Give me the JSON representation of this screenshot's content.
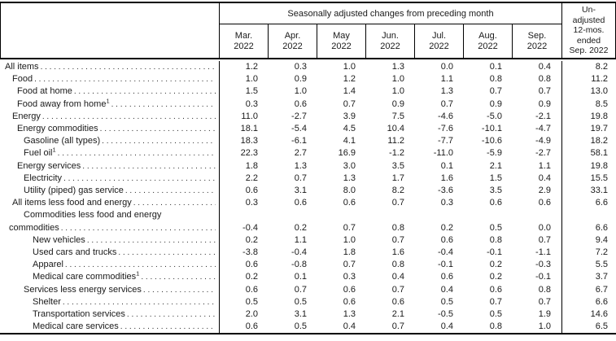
{
  "page": {
    "background": "#ffffff",
    "border_color": "#000000",
    "text_color": "#1a1a1a"
  },
  "table": {
    "header": {
      "group_title": "Seasonally adjusted changes from preceding month",
      "month_columns": [
        {
          "month": "Mar.",
          "year": "2022"
        },
        {
          "month": "Apr.",
          "year": "2022"
        },
        {
          "month": "May",
          "year": "2022"
        },
        {
          "month": "Jun.",
          "year": "2022"
        },
        {
          "month": "Jul.",
          "year": "2022"
        },
        {
          "month": "Aug.",
          "year": "2022"
        },
        {
          "month": "Sep.",
          "year": "2022"
        }
      ],
      "unadjusted_lines": [
        "Un-",
        "adjusted",
        "12-mos.",
        "ended",
        "Sep. 2022"
      ]
    },
    "rows": [
      {
        "lines": [
          "All items"
        ],
        "footnote": "",
        "level": 0,
        "values": [
          "1.2",
          "0.3",
          "1.0",
          "1.3",
          "0.0",
          "0.1",
          "0.4"
        ],
        "yoy": "8.2"
      },
      {
        "lines": [
          "Food"
        ],
        "footnote": "",
        "level": 1,
        "values": [
          "1.0",
          "0.9",
          "1.2",
          "1.0",
          "1.1",
          "0.8",
          "0.8"
        ],
        "yoy": "11.2"
      },
      {
        "lines": [
          "Food at home"
        ],
        "footnote": "",
        "level": 2,
        "values": [
          "1.5",
          "1.0",
          "1.4",
          "1.0",
          "1.3",
          "0.7",
          "0.7"
        ],
        "yoy": "13.0"
      },
      {
        "lines": [
          "Food away from home"
        ],
        "footnote": "1",
        "level": 2,
        "values": [
          "0.3",
          "0.6",
          "0.7",
          "0.9",
          "0.7",
          "0.9",
          "0.9"
        ],
        "yoy": "8.5"
      },
      {
        "lines": [
          "Energy"
        ],
        "footnote": "",
        "level": 1,
        "values": [
          "11.0",
          "-2.7",
          "3.9",
          "7.5",
          "-4.6",
          "-5.0",
          "-2.1"
        ],
        "yoy": "19.8"
      },
      {
        "lines": [
          "Energy commodities"
        ],
        "footnote": "",
        "level": 2,
        "values": [
          "18.1",
          "-5.4",
          "4.5",
          "10.4",
          "-7.6",
          "-10.1",
          "-4.7"
        ],
        "yoy": "19.7"
      },
      {
        "lines": [
          "Gasoline (all types)"
        ],
        "footnote": "",
        "level": 3,
        "values": [
          "18.3",
          "-6.1",
          "4.1",
          "11.2",
          "-7.7",
          "-10.6",
          "-4.9"
        ],
        "yoy": "18.2"
      },
      {
        "lines": [
          "Fuel oil"
        ],
        "footnote": "1",
        "level": 3,
        "values": [
          "22.3",
          "2.7",
          "16.9",
          "-1.2",
          "-11.0",
          "-5.9",
          "-2.7"
        ],
        "yoy": "58.1"
      },
      {
        "lines": [
          "Energy services"
        ],
        "footnote": "",
        "level": 2,
        "values": [
          "1.8",
          "1.3",
          "3.0",
          "3.5",
          "0.1",
          "2.1",
          "1.1"
        ],
        "yoy": "19.8"
      },
      {
        "lines": [
          "Electricity"
        ],
        "footnote": "",
        "level": 3,
        "values": [
          "2.2",
          "0.7",
          "1.3",
          "1.7",
          "1.6",
          "1.5",
          "0.4"
        ],
        "yoy": "15.5"
      },
      {
        "lines": [
          "Utility (piped) gas service"
        ],
        "footnote": "",
        "level": 3,
        "values": [
          "0.6",
          "3.1",
          "8.0",
          "8.2",
          "-3.6",
          "3.5",
          "2.9"
        ],
        "yoy": "33.1"
      },
      {
        "lines": [
          "All items less food and energy"
        ],
        "footnote": "",
        "level": 1,
        "values": [
          "0.3",
          "0.6",
          "0.6",
          "0.7",
          "0.3",
          "0.6",
          "0.6"
        ],
        "yoy": "6.6"
      },
      {
        "lines": [
          "Commodities less food and energy",
          "commodities"
        ],
        "footnote": "",
        "level": 3,
        "values": [
          "-0.4",
          "0.2",
          "0.7",
          "0.8",
          "0.2",
          "0.5",
          "0.0"
        ],
        "yoy": "6.6"
      },
      {
        "lines": [
          "New vehicles"
        ],
        "footnote": "",
        "level": 4,
        "values": [
          "0.2",
          "1.1",
          "1.0",
          "0.7",
          "0.6",
          "0.8",
          "0.7"
        ],
        "yoy": "9.4"
      },
      {
        "lines": [
          "Used cars and trucks"
        ],
        "footnote": "",
        "level": 4,
        "values": [
          "-3.8",
          "-0.4",
          "1.8",
          "1.6",
          "-0.4",
          "-0.1",
          "-1.1"
        ],
        "yoy": "7.2"
      },
      {
        "lines": [
          "Apparel"
        ],
        "footnote": "",
        "level": 4,
        "values": [
          "0.6",
          "-0.8",
          "0.7",
          "0.8",
          "-0.1",
          "0.2",
          "-0.3"
        ],
        "yoy": "5.5"
      },
      {
        "lines": [
          "Medical care commodities"
        ],
        "footnote": "1",
        "level": 4,
        "values": [
          "0.2",
          "0.1",
          "0.3",
          "0.4",
          "0.6",
          "0.2",
          "-0.1"
        ],
        "yoy": "3.7"
      },
      {
        "lines": [
          "Services less energy services"
        ],
        "footnote": "",
        "level": 3,
        "values": [
          "0.6",
          "0.7",
          "0.6",
          "0.7",
          "0.4",
          "0.6",
          "0.8"
        ],
        "yoy": "6.7"
      },
      {
        "lines": [
          "Shelter"
        ],
        "footnote": "",
        "level": 4,
        "values": [
          "0.5",
          "0.5",
          "0.6",
          "0.6",
          "0.5",
          "0.7",
          "0.7"
        ],
        "yoy": "6.6"
      },
      {
        "lines": [
          "Transportation services"
        ],
        "footnote": "",
        "level": 4,
        "values": [
          "2.0",
          "3.1",
          "1.3",
          "2.1",
          "-0.5",
          "0.5",
          "1.9"
        ],
        "yoy": "14.6"
      },
      {
        "lines": [
          "Medical care services"
        ],
        "footnote": "",
        "level": 4,
        "values": [
          "0.6",
          "0.5",
          "0.4",
          "0.7",
          "0.4",
          "0.8",
          "1.0"
        ],
        "yoy": "6.5"
      }
    ]
  }
}
